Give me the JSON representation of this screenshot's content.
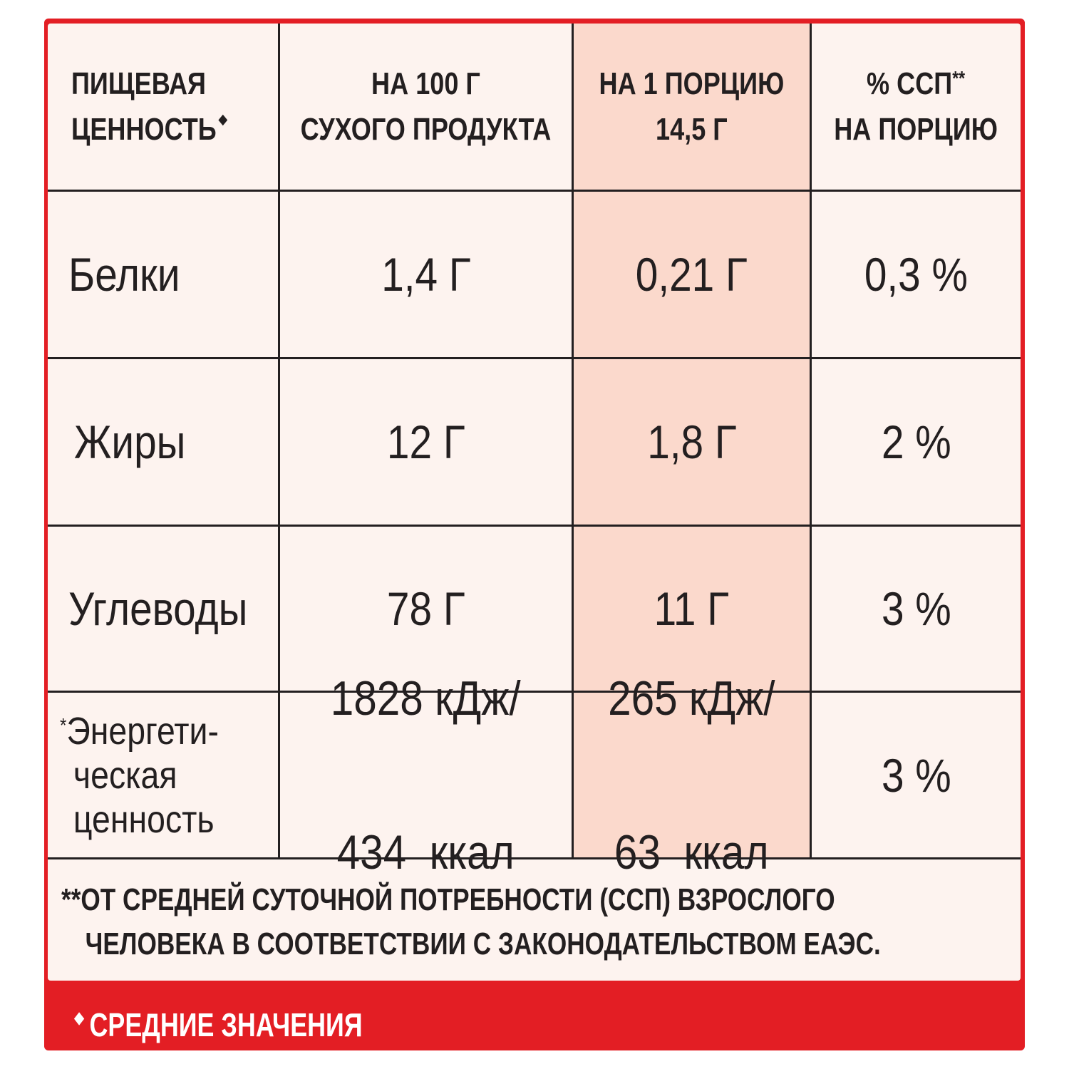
{
  "colors": {
    "frame": "#e31e24",
    "panel": "#fdf3ef",
    "highlight_column": "#fbd9cc",
    "text": "#231f20",
    "footer_text": "#ffffff"
  },
  "table": {
    "headers": {
      "nutrient_line1": "ПИЩЕВАЯ",
      "nutrient_line2": "ЦЕННОСТЬ",
      "per100_line1": "НА 100 Г",
      "per100_line2": "СУХОГО ПРОДУКТА",
      "portion_line1": "НА 1 ПОРЦИЮ",
      "portion_line2": "14,5 Г",
      "rda_line1": "% ССП",
      "rda_mark": "**",
      "rda_line2": "НА ПОРЦИЮ"
    },
    "rows": [
      {
        "name": "Белки",
        "per100": "1,4 Г",
        "portion": "0,21 Г",
        "rda": "0,3 %"
      },
      {
        "name": "Жиры",
        "per100": "12 Г",
        "portion": "1,8 Г",
        "rda": "2 %"
      },
      {
        "name": "Углеводы",
        "per100": "78 Г",
        "portion": "11 Г",
        "rda": "3 %"
      }
    ],
    "energy": {
      "mark": "*",
      "name_line1": "Энергети-",
      "name_line2": "ческая",
      "name_line3": "ценность",
      "per100_line1": "1828 кДж/",
      "per100_line2": "434  ккал",
      "portion_line1": "265 кДж/",
      "portion_line2": "63  ккал",
      "rda": "3 %"
    }
  },
  "footnote": {
    "mark": "**",
    "line1": "ОТ СРЕДНЕЙ СУТОЧНОЙ ПОТРЕБНОСТИ (ССП) ВЗРОСЛОГО",
    "line2": "ЧЕЛОВЕКА В СООТВЕТСТВИИ С ЗАКОНОДАТЕЛЬСТВОМ ЕАЭС."
  },
  "footer": {
    "label": "СРЕДНИЕ ЗНАЧЕНИЯ",
    "icon": "diamond-icon"
  }
}
